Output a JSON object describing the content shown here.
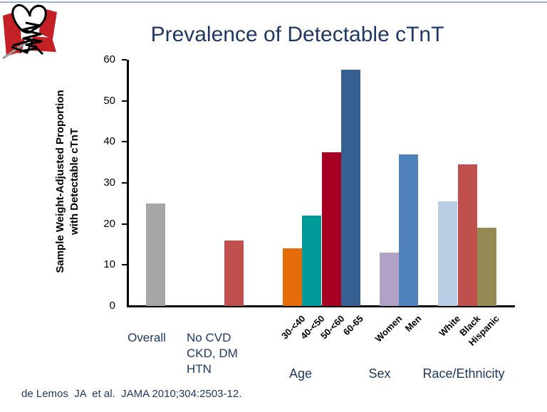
{
  "slide": {
    "title": "Prevalence of Detectable cTnT",
    "citation": "de Lemos  JA  et al.  JAMA 2010;304:2503-12.",
    "accent_line_color": "#9DB3CC",
    "title_color": "#1F3864",
    "logo_red": "#C42127"
  },
  "chart_data": {
    "type": "bar",
    "title": "Prevalence of Detectable cTnT",
    "ylabel": "Sample Weight-Adjusted Proportion\nwith Detectable  cTnT",
    "xlabel": "",
    "ylim": [
      0,
      60
    ],
    "yticks": [
      0,
      10,
      20,
      30,
      40,
      50,
      60
    ],
    "grid": false,
    "legend": "none",
    "bars": [
      {
        "label": "Overall",
        "value": 25,
        "color": "#A6A6A6",
        "group": ""
      },
      {
        "label": "No CVD\nCKD, DM\nHTN",
        "value": 16,
        "color": "#C0504D",
        "group": ""
      },
      {
        "label": "30-<40",
        "value": 14,
        "color": "#E46C0A",
        "group": "Age"
      },
      {
        "label": "40-<50",
        "value": 22,
        "color": "#009A9A",
        "group": "Age"
      },
      {
        "label": "50-<60",
        "value": 37.5,
        "color": "#A50021",
        "group": "Age"
      },
      {
        "label": "60-65",
        "value": 57.5,
        "color": "#376092",
        "group": "Age"
      },
      {
        "label": "Women",
        "value": 13,
        "color": "#B2A1C7",
        "group": "Sex"
      },
      {
        "label": "Men",
        "value": 37,
        "color": "#4F81BD",
        "group": "Sex"
      },
      {
        "label": "White",
        "value": 25.5,
        "color": "#B9CDE5",
        "group": "Race/Ethnicity"
      },
      {
        "label": "Black",
        "value": 34.5,
        "color": "#C0504D",
        "group": "Race/Ethnicity"
      },
      {
        "label": "Hispanic",
        "value": 19,
        "color": "#948A54",
        "group": "Race/Ethnicity"
      }
    ],
    "group_labels": [
      "Age",
      "Sex",
      "Race/Ethnicity"
    ]
  }
}
